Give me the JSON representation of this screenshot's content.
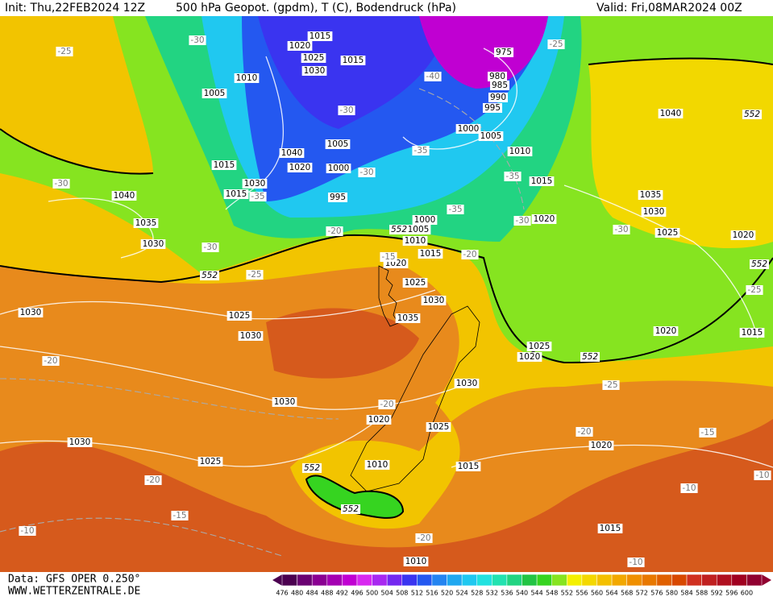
{
  "header": {
    "init": "Init: Thu,22FEB2024 12Z",
    "title": "500 hPa Geopot. (gpdm), T (C), Bodendruck (hPa)",
    "valid": "Valid: Fri,08MAR2024 00Z"
  },
  "footer": {
    "data": "Data: GFS OPER 0.250°",
    "site": "WWW.WETTERZENTRALE.DE"
  },
  "colorbar": {
    "ticks": [
      476,
      480,
      484,
      488,
      492,
      496,
      500,
      504,
      508,
      512,
      516,
      520,
      524,
      528,
      532,
      536,
      540,
      544,
      548,
      552,
      556,
      560,
      564,
      568,
      572,
      576,
      580,
      584,
      588,
      592,
      596,
      600
    ],
    "colors": [
      "#4b0050",
      "#6a0072",
      "#8a0092",
      "#a400b2",
      "#c000d2",
      "#d828f0",
      "#a828f0",
      "#7428f0",
      "#3a34f0",
      "#2458f0",
      "#2484f0",
      "#20a8f0",
      "#20c8f0",
      "#22e2e0",
      "#22e2b0",
      "#22d482",
      "#22c444",
      "#36d420",
      "#86e420",
      "#f4f000",
      "#f4d800",
      "#f4c000",
      "#f2a800",
      "#f09000",
      "#e87800",
      "#e06000",
      "#d84800",
      "#d03020",
      "#c02020",
      "#b01020",
      "#a00020",
      "#900030"
    ]
  },
  "map": {
    "isobars": [
      1015,
      1020,
      1025,
      1015,
      1030,
      1010,
      1005,
      975,
      980,
      985,
      990,
      995,
      1000,
      1005,
      1010,
      1015,
      1040,
      1020,
      1000,
      1005,
      1030,
      1015,
      995,
      1040,
      1035,
      1030,
      1000,
      1005,
      1010,
      1015,
      1020,
      1025,
      1030,
      1035,
      1030,
      1025,
      1030,
      1015,
      1020,
      1040,
      1035,
      1030,
      1025,
      1020,
      1020,
      1015,
      1025,
      1020,
      1030,
      1030,
      1020,
      1025,
      1030,
      1025,
      1010,
      1015,
      1020,
      1015,
      1010
    ],
    "temperatures": [
      -25,
      -30,
      -30,
      -40,
      -25,
      -35,
      -30,
      -35,
      -35,
      -30,
      -30,
      -35,
      -20,
      -30,
      -25,
      -15,
      -20,
      -30,
      -25,
      -20,
      -25,
      -20,
      -20,
      -15,
      -20,
      -15,
      -10,
      -20,
      -10,
      -10,
      -10
    ],
    "geopotential": [
      552,
      552,
      552,
      552,
      552,
      552,
      552
    ]
  }
}
